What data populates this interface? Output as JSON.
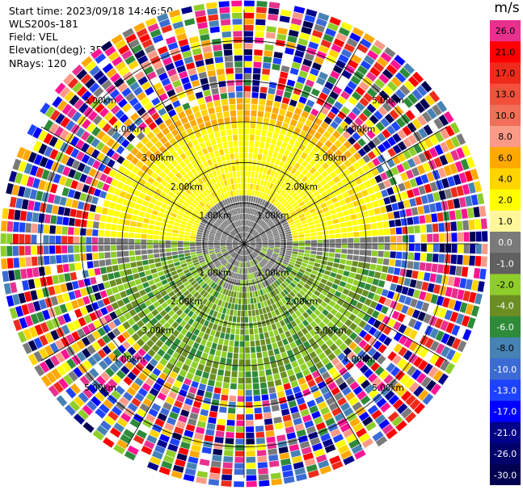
{
  "header": {
    "start_time": "Start time: 2023/09/18 14:46:50",
    "instrument": "WLS200s-181",
    "field": "Field: VEL",
    "elevation": "Elevation(deg): 35.30",
    "nrays": "NRays: 120"
  },
  "colorbar": {
    "unit": "m/s",
    "ticks": [
      "26.0",
      "21.0",
      "17.0",
      "13.0",
      "10.0",
      "8.0",
      "6.0",
      "4.0",
      "2.0",
      "1.0",
      "0.0",
      "-1.0",
      "-2.0",
      "-4.0",
      "-6.0",
      "-8.0",
      "-10.0",
      "-13.0",
      "-17.0",
      "-21.0",
      "-26.0",
      "-30.0"
    ],
    "colors": [
      "#e8308f",
      "#ff0000",
      "#ee2b1b",
      "#f2503a",
      "#f36e58",
      "#fb9a86",
      "#ffa800",
      "#ffd400",
      "#ffff00",
      "#fff799",
      "#7a7a7a",
      "#606060",
      "#8fce2a",
      "#6b8e23",
      "#2e8b3a",
      "#4682b4",
      "#3d6bd6",
      "#1d43ff",
      "#0000ff",
      "#00008b",
      "#00006b",
      "#000050"
    ]
  },
  "chart_data": {
    "type": "heatmap",
    "projection": "PPI",
    "field": "VEL",
    "units": "m/s",
    "nrays": 120,
    "elevation_deg": 35.3,
    "range_rings_km": [
      1.0,
      2.0,
      3.0,
      4.0,
      5.0
    ],
    "range_labels": [
      "1.00km",
      "2.00km",
      "3.00km",
      "4.00km",
      "5.00km"
    ],
    "grid": true,
    "spoke_count": 12
  }
}
